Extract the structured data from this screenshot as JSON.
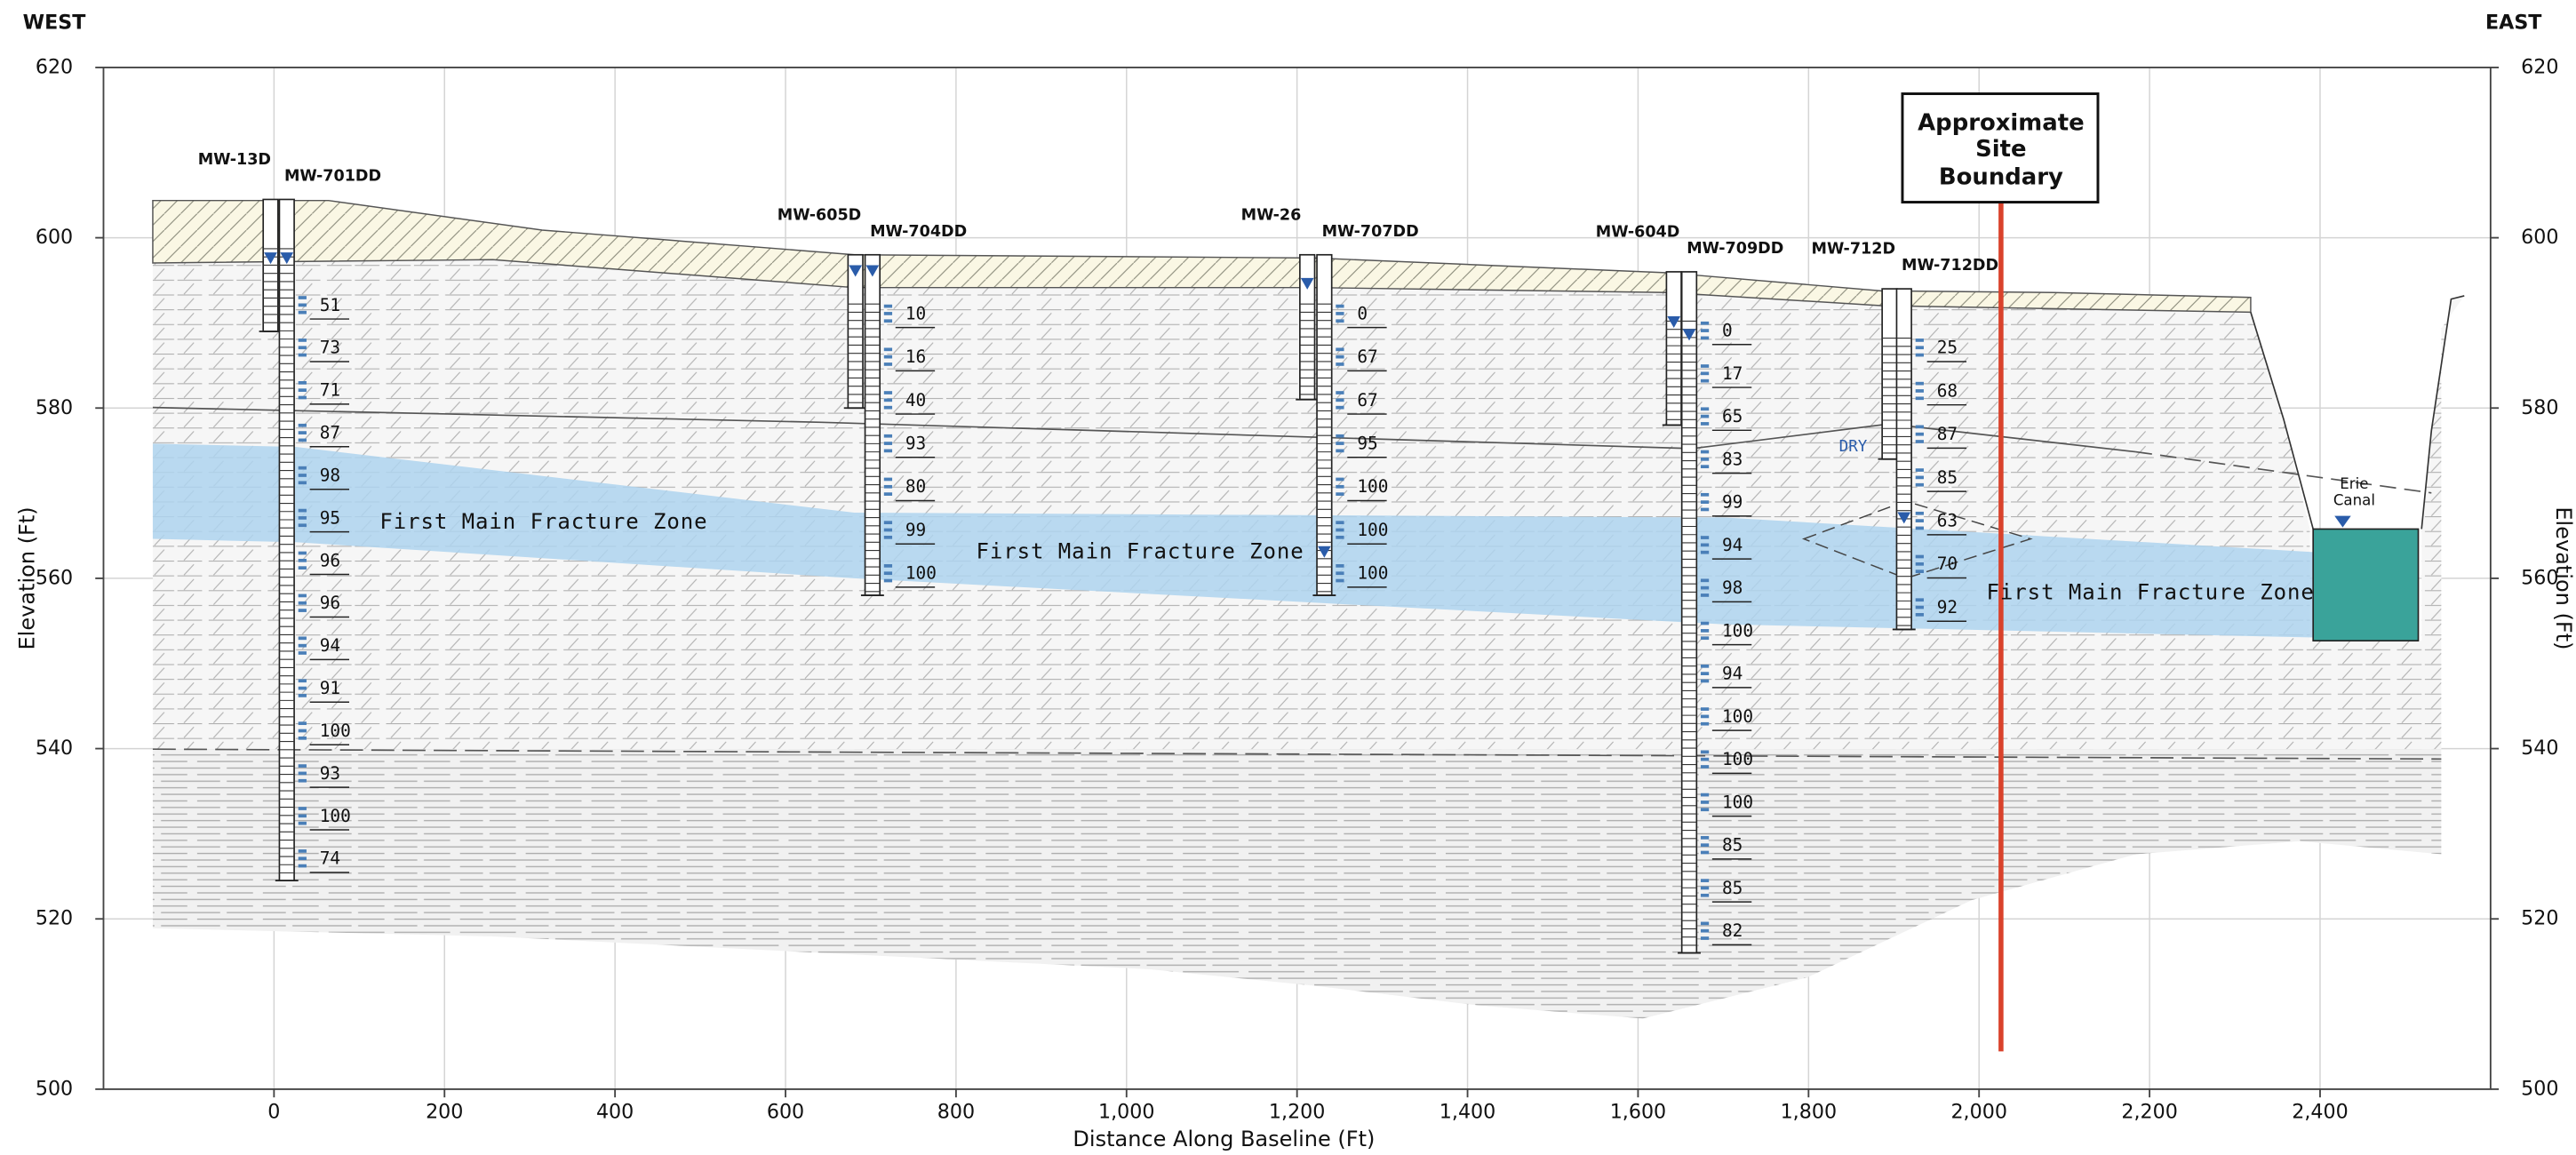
{
  "header": {
    "west": "WEST",
    "east": "EAST"
  },
  "chart_data": {
    "type": "cross-section",
    "xlabel": "Distance Along Baseline (Ft)",
    "ylabel": "Elevation (Ft)",
    "y2label": "Elevation (Ft)",
    "xlim": [
      -200,
      2600
    ],
    "ylim": [
      500,
      620
    ],
    "y2lim": [
      500,
      620
    ],
    "xticks": [
      0,
      200,
      400,
      600,
      800,
      {
        "value": 1000,
        "label": "1,000"
      },
      {
        "value": 1200,
        "label": "1,200"
      },
      {
        "value": 1400,
        "label": "1,400"
      },
      {
        "value": 1600,
        "label": "1,600"
      },
      {
        "value": 1800,
        "label": "1,800"
      },
      {
        "value": 2000,
        "label": "2,000"
      },
      {
        "value": 2200,
        "label": "2,200"
      },
      {
        "value": 2400,
        "label": "2,400"
      }
    ],
    "yticks": [
      500,
      520,
      540,
      560,
      580,
      600,
      620
    ],
    "y2ticks": [
      500,
      520,
      540,
      560,
      580,
      600,
      620
    ],
    "grid": true,
    "wells": [
      {
        "name": "MW-13D",
        "x": -4,
        "top": 604.5,
        "bottom": 589,
        "water": 597.5
      },
      {
        "name": "MW-701DD",
        "x": 15,
        "top": 604.5,
        "bottom": 524.5,
        "water": 597.5,
        "readings": [
          51,
          73,
          71,
          87,
          98,
          95,
          96,
          96,
          94,
          91,
          100,
          93,
          100,
          74
        ]
      },
      {
        "name": "MW-605D",
        "x": 682,
        "top": 598,
        "bottom": 580,
        "water": 596
      },
      {
        "name": "MW-704DD",
        "x": 702,
        "top": 598,
        "bottom": 558,
        "water": 596,
        "readings": [
          10,
          16,
          40,
          93,
          80,
          99,
          100
        ]
      },
      {
        "name": "MW-26",
        "x": 1212,
        "top": 598,
        "bottom": 581,
        "water": 594.5
      },
      {
        "name": "MW-707DD",
        "x": 1232,
        "top": 598,
        "bottom": 558,
        "water": 563,
        "readings": [
          0,
          67,
          67,
          95,
          100,
          100,
          100
        ]
      },
      {
        "name": "MW-604D",
        "x": 1642,
        "top": 596,
        "bottom": 578,
        "water": 590
      },
      {
        "name": "MW-709DD",
        "x": 1660,
        "top": 596,
        "bottom": 516,
        "water": 588.5,
        "readings": [
          0,
          17,
          65,
          83,
          99,
          94,
          98,
          100,
          94,
          100,
          100,
          100,
          85,
          85,
          82
        ]
      },
      {
        "name": "MW-712D",
        "x": 1895,
        "top": 594,
        "bottom": 574,
        "water": null
      },
      {
        "name": "MW-712DD",
        "x": 1912,
        "top": 594,
        "bottom": 554,
        "water": 567,
        "readings": [
          25,
          68,
          87,
          85,
          63,
          70,
          92
        ]
      }
    ],
    "annotations": {
      "boundary": [
        "Approximate",
        "Site",
        "Boundary"
      ],
      "zones": [
        "First Main Fracture Zone",
        "First Main Fracture Zone",
        "First Main Fracture Zone"
      ],
      "dry": "DRY",
      "canal": [
        "Erie",
        "Canal"
      ]
    }
  }
}
